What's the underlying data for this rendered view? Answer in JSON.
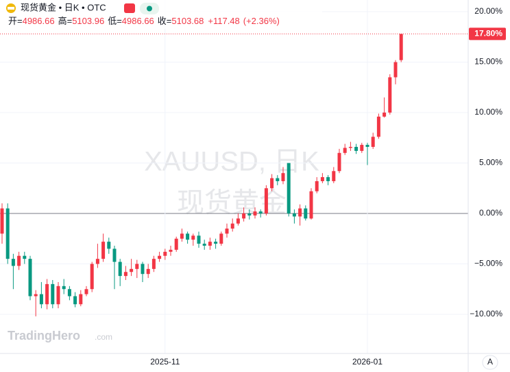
{
  "header": {
    "title": "现货黄金 • 日K • OTC",
    "ohlc": [
      {
        "label": "开=",
        "value": "4986.66"
      },
      {
        "label": "高=",
        "value": "5103.96"
      },
      {
        "label": "低=",
        "value": "4986.66"
      },
      {
        "label": "收=",
        "value": "5103.68"
      }
    ],
    "change": "+117.48",
    "change_pct": "(+2.36%)"
  },
  "watermark": [
    "XAUUSD, 日K",
    "现货黄金"
  ],
  "logo": {
    "name": "TradingHero",
    "suffix": ".com"
  },
  "scale_button": "A",
  "chart_data": {
    "type": "candlestick",
    "up_color": "#f23645",
    "down_color": "#089981",
    "grid": true,
    "ylim": [
      -13.88,
      21.16
    ],
    "yticks": [
      {
        "value": 20,
        "label": "20.00%"
      },
      {
        "value": 15,
        "label": "15.00%"
      },
      {
        "value": 10,
        "label": "10.00%"
      },
      {
        "value": 5,
        "label": "5.00%"
      },
      {
        "value": 0,
        "label": "0.00%"
      },
      {
        "value": -5,
        "label": "−5.00%"
      },
      {
        "value": -10,
        "label": "−10.00%"
      }
    ],
    "xticks": [
      {
        "value": 29,
        "label": "2025-11"
      },
      {
        "value": 65,
        "label": "2026-01"
      }
    ],
    "last_value": {
      "value": 17.8,
      "label": "17.80%"
    },
    "open": [
      -2.0,
      0.5,
      -4.5,
      -5.2,
      -4.2,
      -4.5,
      -8.2,
      -8.0,
      -9.0,
      -7.0,
      -9.0,
      -7.2,
      -7.5,
      -8.2,
      -9.0,
      -8.0,
      -7.5,
      -5.0,
      -4.5,
      -2.8,
      -3.5,
      -4.8,
      -6.2,
      -5.8,
      -5.5,
      -5.0,
      -6.0,
      -5.5,
      -4.5,
      -4.2,
      -3.8,
      -3.6,
      -2.5,
      -2.0,
      -2.6,
      -2.2,
      -3.0,
      -3.2,
      -2.8,
      -3.0,
      -2.0,
      -1.5,
      -1.0,
      -0.5,
      0.0,
      -0.2,
      0.2,
      0.0,
      2.5,
      3.5,
      3.2,
      5.0,
      0.0,
      -0.3,
      0.5,
      -0.5,
      2.2,
      3.2,
      3.6,
      3.2,
      4.2,
      6.0,
      6.5,
      6.6,
      6.2,
      6.8,
      6.6,
      7.6,
      9.6,
      10.0,
      13.5,
      15.2
    ],
    "high": [
      1.0,
      1.0,
      -4.0,
      -3.8,
      -3.8,
      -4.2,
      -7.6,
      -6.8,
      -6.5,
      -6.6,
      -6.8,
      -6.5,
      -7.2,
      -7.8,
      -7.6,
      -7.2,
      -4.8,
      -3.0,
      -2.0,
      -2.4,
      -3.2,
      -4.5,
      -5.2,
      -4.5,
      -4.6,
      -4.8,
      -5.0,
      -4.2,
      -3.8,
      -3.5,
      -3.2,
      -2.3,
      -1.5,
      -1.8,
      -2.0,
      -1.8,
      -2.6,
      -2.4,
      -2.5,
      -1.8,
      -1.0,
      -0.5,
      0.0,
      0.6,
      0.4,
      0.6,
      0.4,
      2.8,
      3.9,
      3.8,
      4.6,
      5.0,
      0.4,
      0.9,
      0.8,
      2.5,
      3.6,
      4.0,
      3.8,
      4.6,
      6.4,
      6.9,
      7.1,
      6.9,
      7.0,
      7.0,
      8.0,
      9.9,
      11.5,
      13.8,
      15.2,
      17.8
    ],
    "low": [
      -3.0,
      -5.0,
      -7.5,
      -5.6,
      -5.0,
      -8.6,
      -10.2,
      -9.4,
      -9.5,
      -9.4,
      -9.4,
      -8.0,
      -8.6,
      -9.3,
      -9.2,
      -8.2,
      -7.8,
      -5.4,
      -4.8,
      -4.0,
      -7.5,
      -7.2,
      -6.6,
      -6.2,
      -6.4,
      -6.8,
      -6.4,
      -5.8,
      -4.8,
      -4.6,
      -4.2,
      -3.8,
      -2.8,
      -3.0,
      -3.2,
      -3.4,
      -3.6,
      -3.6,
      -3.5,
      -3.2,
      -2.4,
      -1.8,
      -1.2,
      -0.8,
      -0.6,
      -0.5,
      -0.4,
      -0.2,
      2.2,
      2.8,
      2.9,
      -0.3,
      -1.0,
      -1.2,
      -0.7,
      -0.6,
      2.0,
      3.0,
      2.8,
      3.0,
      4.0,
      5.8,
      6.2,
      5.9,
      6.0,
      4.8,
      6.4,
      7.4,
      9.5,
      9.8,
      12.8,
      15.0
    ],
    "close": [
      0.5,
      -4.5,
      -5.2,
      -4.2,
      -4.5,
      -8.2,
      -8.0,
      -9.0,
      -7.0,
      -9.0,
      -7.2,
      -7.5,
      -8.2,
      -9.0,
      -8.0,
      -7.5,
      -5.0,
      -4.5,
      -2.8,
      -3.5,
      -4.8,
      -6.2,
      -5.8,
      -5.5,
      -5.0,
      -6.0,
      -5.5,
      -4.5,
      -4.2,
      -3.8,
      -3.6,
      -2.5,
      -2.0,
      -2.6,
      -2.2,
      -3.0,
      -3.2,
      -2.8,
      -3.0,
      -2.0,
      -1.5,
      -1.0,
      -0.5,
      0.0,
      -0.2,
      0.2,
      0.0,
      2.5,
      3.5,
      3.2,
      4.0,
      0.0,
      -0.3,
      0.5,
      -0.5,
      2.2,
      3.2,
      3.6,
      3.2,
      4.2,
      6.0,
      6.5,
      6.6,
      6.2,
      6.8,
      6.6,
      7.6,
      9.6,
      10.0,
      13.5,
      15.0,
      17.8
    ]
  }
}
